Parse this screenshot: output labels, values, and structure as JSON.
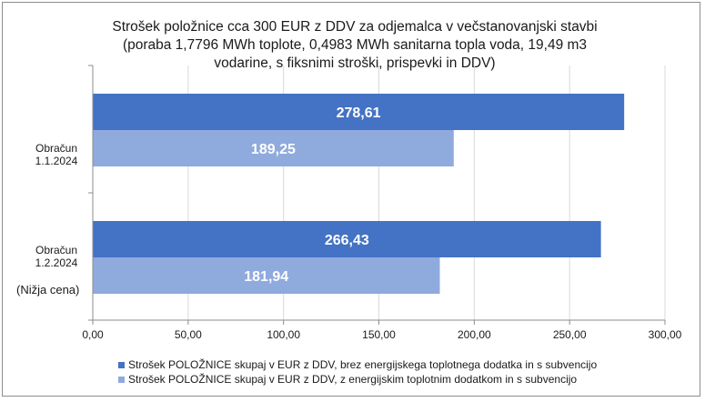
{
  "chart_data": {
    "type": "bar",
    "orientation": "horizontal",
    "title_lines": [
      "Strošek položnice cca 300 EUR z DDV za odjemalca v večstanovanjski stavbi",
      "(poraba 1,7796 MWh toplote, 0,4983 MWh sanitarna topla voda, 19,49 m3",
      "vodarine, s fiksnimi stroški, prispevki in DDV)"
    ],
    "categories": [
      {
        "label_lines": [
          "Obračun",
          "1.1.2024"
        ],
        "note": ""
      },
      {
        "label_lines": [
          "Obračun",
          "1.2.2024"
        ],
        "note": "(Nižja cena)"
      }
    ],
    "series": [
      {
        "name": "Strošek POLOŽNICE skupaj v EUR z DDV, brez energijskega toplotnega dodatka in s subvencijo",
        "color": "#4472c4",
        "values": [
          278.61,
          266.43
        ],
        "value_labels": [
          "278,61",
          "266,43"
        ]
      },
      {
        "name": "Strošek POLOŽNICE skupaj v EUR z DDV, z energijskim toplotnim dodatkom in s subvencijo",
        "color": "#8faadc",
        "values": [
          189.25,
          181.94
        ],
        "value_labels": [
          "189,25",
          "181,94"
        ]
      }
    ],
    "xlim": [
      0,
      300
    ],
    "xticks": [
      0,
      50,
      100,
      150,
      200,
      250,
      300
    ],
    "xtick_labels": [
      "0,00",
      "50,00",
      "100,00",
      "150,00",
      "200,00",
      "250,00",
      "300,00"
    ],
    "grid": "vertical",
    "legend_position": "bottom"
  }
}
